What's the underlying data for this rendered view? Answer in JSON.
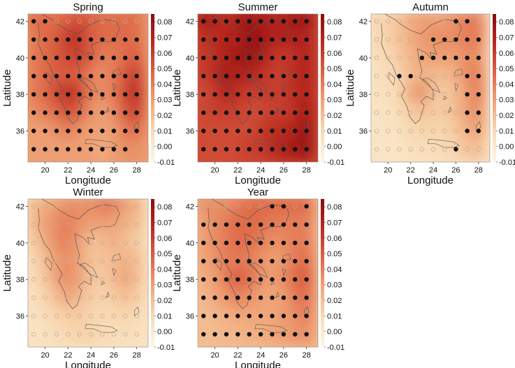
{
  "figure": {
    "xlabel": "Longitude",
    "ylabel": "Latitude"
  },
  "colors": {
    "colormap": [
      "#fdf6e8",
      "#f8dcb6",
      "#f0a678",
      "#dd6545",
      "#bb2a22",
      "#8c0a0c"
    ],
    "dot_significant": "#111111",
    "dot_other": "#c8a898",
    "coast": "#555555"
  },
  "chart_data": [
    {
      "type": "heatmap",
      "title": "Spring",
      "x_ticks": [
        20,
        22,
        24,
        26,
        28
      ],
      "y_ticks": [
        36,
        38,
        40,
        42
      ],
      "xlim": [
        18.5,
        29
      ],
      "ylim": [
        34.3,
        42.4
      ],
      "colorbar": {
        "ticks": [
          "0.08",
          "0.07",
          "0.06",
          "0.05",
          "0.04",
          "0.03",
          "0.02",
          "0.01",
          "0.00",
          "-0.01"
        ],
        "range": [
          -0.01,
          0.085
        ]
      },
      "grid_lon": [
        19,
        20,
        21,
        22,
        23,
        24,
        25,
        26,
        27,
        28
      ],
      "grid_lat": [
        42,
        41,
        40,
        39,
        38,
        37,
        36,
        35
      ],
      "values": [
        [
          0.045,
          0.045,
          0.045,
          0.05,
          0.055,
          0.05,
          0.045,
          0.045,
          0.045,
          0.045
        ],
        [
          0.04,
          0.045,
          0.05,
          0.06,
          0.065,
          0.05,
          0.045,
          0.045,
          0.045,
          0.045
        ],
        [
          0.04,
          0.045,
          0.05,
          0.055,
          0.06,
          0.05,
          0.04,
          0.04,
          0.045,
          0.05
        ],
        [
          0.04,
          0.045,
          0.05,
          0.05,
          0.05,
          0.04,
          0.035,
          0.04,
          0.05,
          0.06
        ],
        [
          0.04,
          0.045,
          0.055,
          0.065,
          0.06,
          0.04,
          0.035,
          0.04,
          0.055,
          0.065
        ],
        [
          0.035,
          0.04,
          0.045,
          0.055,
          0.05,
          0.035,
          0.03,
          0.035,
          0.05,
          0.06
        ],
        [
          0.03,
          0.03,
          0.035,
          0.04,
          0.035,
          0.03,
          0.03,
          0.03,
          0.04,
          0.045
        ],
        [
          0.03,
          0.03,
          0.03,
          0.03,
          0.03,
          0.03,
          0.025,
          0.03,
          0.035,
          0.035
        ]
      ],
      "dots": [
        "1100000000",
        "1111111111",
        "1111111111",
        "1111111111",
        "1111111111",
        "1111111111",
        "1111111111",
        "1111111110"
      ]
    },
    {
      "type": "heatmap",
      "title": "Summer",
      "x_ticks": [
        20,
        22,
        24,
        26,
        28
      ],
      "y_ticks": [
        36,
        38,
        40,
        42
      ],
      "xlim": [
        18.5,
        29
      ],
      "ylim": [
        34.3,
        42.4
      ],
      "colorbar": {
        "ticks": [
          "0.08",
          "0.07",
          "0.06",
          "0.05",
          "0.04",
          "0.03",
          "0.02",
          "0.01",
          "0.00",
          "-0.01"
        ],
        "range": [
          -0.01,
          0.085
        ]
      },
      "grid_lon": [
        19,
        20,
        21,
        22,
        23,
        24,
        25,
        26,
        27,
        28
      ],
      "grid_lat": [
        42,
        41,
        40,
        39,
        38,
        37,
        36,
        35
      ],
      "values": [
        [
          0.075,
          0.07,
          0.065,
          0.07,
          0.08,
          0.075,
          0.07,
          0.07,
          0.075,
          0.08
        ],
        [
          0.065,
          0.065,
          0.07,
          0.07,
          0.08,
          0.08,
          0.07,
          0.07,
          0.07,
          0.07
        ],
        [
          0.06,
          0.065,
          0.07,
          0.075,
          0.08,
          0.075,
          0.065,
          0.06,
          0.065,
          0.07
        ],
        [
          0.06,
          0.065,
          0.075,
          0.07,
          0.07,
          0.065,
          0.06,
          0.06,
          0.065,
          0.07
        ],
        [
          0.055,
          0.06,
          0.07,
          0.065,
          0.06,
          0.06,
          0.06,
          0.06,
          0.065,
          0.07
        ],
        [
          0.055,
          0.06,
          0.06,
          0.06,
          0.055,
          0.055,
          0.06,
          0.06,
          0.065,
          0.075
        ],
        [
          0.055,
          0.055,
          0.055,
          0.055,
          0.055,
          0.06,
          0.065,
          0.065,
          0.07,
          0.08
        ],
        [
          0.055,
          0.055,
          0.055,
          0.055,
          0.06,
          0.06,
          0.065,
          0.07,
          0.075,
          0.08
        ]
      ],
      "dots": [
        "1111111111",
        "1111111111",
        "1111111111",
        "1111111111",
        "1111111111",
        "1111111111",
        "1111111111",
        "1111111111"
      ]
    },
    {
      "type": "heatmap",
      "title": "Autumn",
      "x_ticks": [
        20,
        22,
        24,
        26,
        28
      ],
      "y_ticks": [
        36,
        38,
        40,
        42
      ],
      "xlim": [
        18.5,
        29
      ],
      "ylim": [
        34.3,
        42.4
      ],
      "colorbar": {
        "ticks": [
          "0.08",
          "0.07",
          "0.06",
          "0.05",
          "0.04",
          "0.03",
          "0.02",
          "0.01",
          "0.00",
          "-0.01"
        ],
        "range": [
          -0.01,
          0.085
        ]
      },
      "grid_lon": [
        19,
        20,
        21,
        22,
        23,
        24,
        25,
        26,
        27,
        28
      ],
      "grid_lat": [
        42,
        41,
        40,
        39,
        38,
        37,
        36,
        35
      ],
      "values": [
        [
          0.01,
          0.012,
          0.018,
          0.025,
          0.03,
          0.03,
          0.03,
          0.035,
          0.04,
          0.04
        ],
        [
          0.01,
          0.012,
          0.018,
          0.025,
          0.03,
          0.035,
          0.035,
          0.035,
          0.04,
          0.04
        ],
        [
          0.008,
          0.01,
          0.015,
          0.022,
          0.028,
          0.03,
          0.03,
          0.03,
          0.035,
          0.035
        ],
        [
          0.006,
          0.008,
          0.012,
          0.02,
          0.025,
          0.022,
          0.02,
          0.025,
          0.035,
          0.04
        ],
        [
          0.005,
          0.006,
          0.01,
          0.025,
          0.035,
          0.02,
          0.015,
          0.02,
          0.03,
          0.04
        ],
        [
          0.004,
          0.005,
          0.008,
          0.015,
          0.02,
          0.015,
          0.015,
          0.02,
          0.03,
          0.035
        ],
        [
          0.003,
          0.004,
          0.006,
          0.01,
          0.012,
          0.012,
          0.012,
          0.015,
          0.025,
          0.03
        ],
        [
          0.003,
          0.003,
          0.004,
          0.006,
          0.008,
          0.008,
          0.01,
          0.012,
          0.018,
          0.02
        ]
      ],
      "dots": [
        "0000000110",
        "0000011111",
        "0000111111",
        "0011000011",
        "0000000011",
        "0000000011",
        "0000000011",
        "0000000100"
      ]
    },
    {
      "type": "heatmap",
      "title": "Winter",
      "x_ticks": [
        20,
        22,
        24,
        26,
        28
      ],
      "y_ticks": [
        36,
        38,
        40,
        42
      ],
      "xlim": [
        18.5,
        29
      ],
      "ylim": [
        34.3,
        42.4
      ],
      "colorbar": {
        "ticks": [
          "0.08",
          "0.07",
          "0.06",
          "0.05",
          "0.04",
          "0.03",
          "0.02",
          "0.01",
          "0.00",
          "-0.01"
        ],
        "range": [
          -0.01,
          0.085
        ]
      },
      "grid_lon": [
        19,
        20,
        21,
        22,
        23,
        24,
        25,
        26,
        27,
        28
      ],
      "grid_lat": [
        42,
        41,
        40,
        39,
        38,
        37,
        36,
        35
      ],
      "values": [
        [
          0.02,
          0.025,
          0.03,
          0.035,
          0.035,
          0.035,
          0.04,
          0.04,
          0.03,
          0.025
        ],
        [
          0.02,
          0.03,
          0.035,
          0.04,
          0.035,
          0.03,
          0.03,
          0.03,
          0.025,
          0.02
        ],
        [
          0.015,
          0.025,
          0.035,
          0.04,
          0.03,
          0.02,
          0.02,
          0.025,
          0.02,
          0.015
        ],
        [
          0.01,
          0.02,
          0.03,
          0.035,
          0.03,
          0.018,
          0.018,
          0.02,
          0.025,
          0.02
        ],
        [
          0.008,
          0.015,
          0.03,
          0.035,
          0.03,
          0.018,
          0.015,
          0.02,
          0.03,
          0.02
        ],
        [
          0.006,
          0.012,
          0.018,
          0.03,
          0.022,
          0.015,
          0.012,
          0.015,
          0.02,
          0.015
        ],
        [
          0.005,
          0.008,
          0.012,
          0.015,
          0.015,
          0.012,
          0.01,
          0.01,
          0.012,
          0.01
        ],
        [
          0.004,
          0.006,
          0.008,
          0.01,
          0.012,
          0.012,
          0.01,
          0.008,
          0.008,
          0.006
        ]
      ],
      "dots": [
        "0000000000",
        "0000000000",
        "0000000000",
        "0000000000",
        "0000000000",
        "0000000000",
        "0000000000",
        "0000000000"
      ]
    },
    {
      "type": "heatmap",
      "title": "Year",
      "x_ticks": [
        20,
        22,
        24,
        26,
        28
      ],
      "y_ticks": [
        36,
        38,
        40,
        42
      ],
      "xlim": [
        18.5,
        29
      ],
      "ylim": [
        34.3,
        42.4
      ],
      "colorbar": {
        "ticks": [
          "0.08",
          "0.07",
          "0.06",
          "0.05",
          "0.04",
          "0.03",
          "0.02",
          "0.01",
          "0.00",
          "-0.01"
        ],
        "range": [
          -0.01,
          0.085
        ]
      },
      "grid_lon": [
        19,
        20,
        21,
        22,
        23,
        24,
        25,
        26,
        27,
        28
      ],
      "grid_lat": [
        42,
        41,
        40,
        39,
        38,
        37,
        36,
        35
      ],
      "values": [
        [
          0.035,
          0.035,
          0.035,
          0.04,
          0.045,
          0.045,
          0.045,
          0.045,
          0.045,
          0.045
        ],
        [
          0.03,
          0.035,
          0.04,
          0.045,
          0.045,
          0.045,
          0.04,
          0.04,
          0.04,
          0.04
        ],
        [
          0.03,
          0.035,
          0.04,
          0.045,
          0.045,
          0.04,
          0.035,
          0.035,
          0.04,
          0.04
        ],
        [
          0.028,
          0.032,
          0.04,
          0.04,
          0.04,
          0.035,
          0.03,
          0.032,
          0.04,
          0.045
        ],
        [
          0.025,
          0.03,
          0.04,
          0.05,
          0.045,
          0.035,
          0.03,
          0.035,
          0.045,
          0.05
        ],
        [
          0.022,
          0.028,
          0.032,
          0.04,
          0.035,
          0.03,
          0.028,
          0.03,
          0.04,
          0.045
        ],
        [
          0.02,
          0.022,
          0.025,
          0.028,
          0.028,
          0.028,
          0.028,
          0.03,
          0.035,
          0.04
        ],
        [
          0.02,
          0.02,
          0.022,
          0.022,
          0.025,
          0.025,
          0.028,
          0.03,
          0.032,
          0.035
        ]
      ],
      "dots": [
        "0000001101",
        "1111111111",
        "1111111111",
        "1111111111",
        "1111111111",
        "1111111111",
        "1111111111",
        "1111111111"
      ]
    }
  ]
}
